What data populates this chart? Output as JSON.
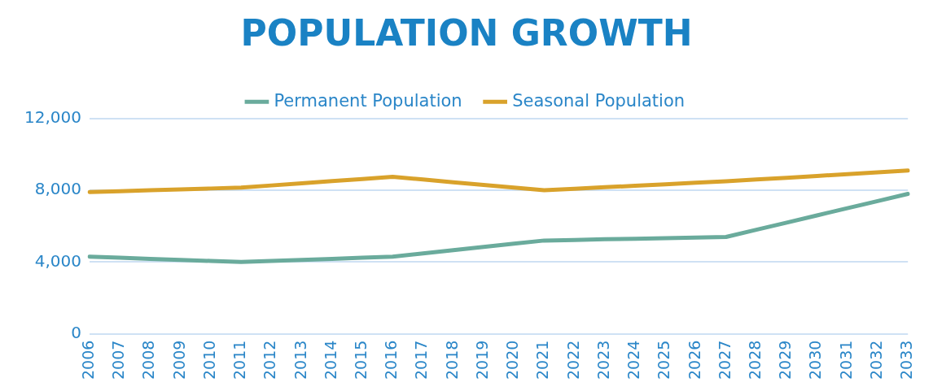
{
  "chart_data": {
    "type": "line",
    "title": "POPULATION GROWTH",
    "categories": [
      "2006",
      "2007",
      "2008",
      "2009",
      "2010",
      "2011",
      "2012",
      "2013",
      "2014",
      "2015",
      "2016",
      "2017",
      "2018",
      "2019",
      "2020",
      "2021",
      "2022",
      "2023",
      "2024",
      "2025",
      "2026",
      "2027",
      "2028",
      "2029",
      "2030",
      "2031",
      "2032",
      "2033"
    ],
    "series": [
      {
        "name": "Permanent Population",
        "color": "#6aab9c",
        "values": [
          4300,
          4240,
          4180,
          4120,
          4060,
          4000,
          4060,
          4120,
          4180,
          4240,
          4300,
          4480,
          4660,
          4840,
          5020,
          5200,
          5230,
          5270,
          5300,
          5330,
          5370,
          5400,
          5800,
          6200,
          6600,
          7000,
          7400,
          7800
        ]
      },
      {
        "name": "Seasonal Population",
        "color": "#d9a22b",
        "values": [
          7900,
          7950,
          8000,
          8050,
          8100,
          8150,
          8270,
          8390,
          8510,
          8630,
          8750,
          8600,
          8450,
          8300,
          8150,
          8000,
          8080,
          8170,
          8250,
          8330,
          8420,
          8500,
          8600,
          8700,
          8800,
          8900,
          9000,
          9100
        ]
      }
    ],
    "ylim": [
      0,
      12000
    ],
    "yticks": [
      {
        "value": 0,
        "label": "0"
      },
      {
        "value": 4000,
        "label": "4,000"
      },
      {
        "value": 8000,
        "label": "8,000"
      },
      {
        "value": 12000,
        "label": "12,000"
      }
    ],
    "grid": "y",
    "legend": "top",
    "marker": "none",
    "line_style": "solid"
  }
}
